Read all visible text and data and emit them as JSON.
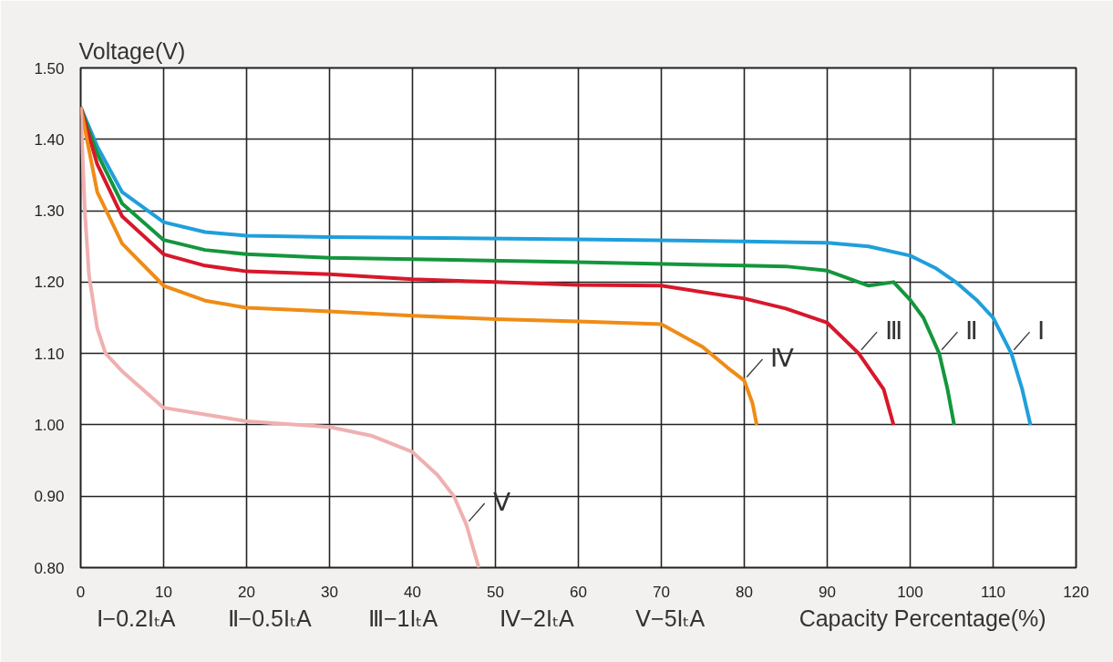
{
  "chart_data": {
    "type": "line",
    "xlabel": "Capacity Percentage(%)",
    "ylabel": "Voltage(V)",
    "xlim": [
      0,
      120
    ],
    "ylim": [
      0.8,
      1.5
    ],
    "xticks": [
      0,
      10,
      20,
      30,
      40,
      50,
      60,
      70,
      80,
      90,
      100,
      110,
      120
    ],
    "yticks": [
      {
        "value": 0.8,
        "label": "0.80"
      },
      {
        "value": 0.9,
        "label": "0.90"
      },
      {
        "value": 1.0,
        "label": "1.00"
      },
      {
        "value": 1.1,
        "label": "1.10"
      },
      {
        "value": 1.2,
        "label": "1.20"
      },
      {
        "value": 1.3,
        "label": "1.30"
      },
      {
        "value": 1.4,
        "label": "1.40"
      },
      {
        "value": 1.5,
        "label": "1.50"
      }
    ],
    "grid": true,
    "marker": "none",
    "line_style": "solid",
    "series": [
      {
        "name": "Ⅰ",
        "color": "#1f9fdc",
        "x": [
          0,
          2,
          5,
          10,
          15,
          20,
          30,
          40,
          60,
          80,
          90,
          95,
          100,
          103,
          105.5,
          108,
          110,
          112.2,
          113.5,
          114.5
        ],
        "values": [
          1.445,
          1.39,
          1.326,
          1.284,
          1.27,
          1.265,
          1.263,
          1.262,
          1.26,
          1.257,
          1.255,
          1.25,
          1.237,
          1.22,
          1.2,
          1.175,
          1.15,
          1.1,
          1.05,
          1.0
        ]
      },
      {
        "name": "Ⅱ",
        "color": "#14963c",
        "x": [
          0,
          2,
          5,
          10,
          15,
          20,
          30,
          40,
          60,
          80,
          85,
          90,
          95,
          98,
          100,
          101.6,
          103.5,
          104.5,
          105.3
        ],
        "values": [
          1.445,
          1.38,
          1.31,
          1.259,
          1.245,
          1.239,
          1.234,
          1.232,
          1.228,
          1.223,
          1.222,
          1.216,
          1.195,
          1.2,
          1.175,
          1.15,
          1.1,
          1.05,
          1.0
        ]
      },
      {
        "name": "Ⅲ",
        "color": "#d7182a",
        "x": [
          0,
          2,
          5,
          10,
          15,
          20,
          30,
          40,
          50,
          60,
          70,
          80,
          85,
          90,
          93.8,
          96.8,
          98
        ],
        "values": [
          1.445,
          1.365,
          1.292,
          1.239,
          1.223,
          1.215,
          1.211,
          1.204,
          1.2,
          1.196,
          1.195,
          1.177,
          1.163,
          1.143,
          1.1,
          1.05,
          1.0
        ]
      },
      {
        "name": "Ⅳ",
        "color": "#ef8c16",
        "x": [
          0,
          2,
          5,
          10,
          15,
          20,
          30,
          40,
          50,
          60,
          70,
          75,
          78,
          80,
          81,
          81.5
        ],
        "values": [
          1.445,
          1.326,
          1.254,
          1.195,
          1.174,
          1.164,
          1.159,
          1.153,
          1.148,
          1.145,
          1.141,
          1.109,
          1.08,
          1.062,
          1.03,
          1.0
        ]
      },
      {
        "name": "Ⅴ",
        "color": "#f0b0b0",
        "x": [
          0,
          0.5,
          1,
          2,
          3,
          5,
          10,
          20,
          30,
          35,
          40,
          43,
          45,
          46.5,
          47.5,
          48
        ],
        "values": [
          1.445,
          1.3,
          1.21,
          1.135,
          1.1,
          1.075,
          1.024,
          1.005,
          0.997,
          0.985,
          0.962,
          0.93,
          0.9,
          0.86,
          0.82,
          0.8
        ]
      }
    ],
    "annotations": [
      "Ⅰ−0.2IₜA",
      "Ⅱ−0.5IₜA",
      "Ⅲ−1IₜA",
      "Ⅳ−2IₜA",
      "Ⅴ−5IₜA"
    ]
  }
}
